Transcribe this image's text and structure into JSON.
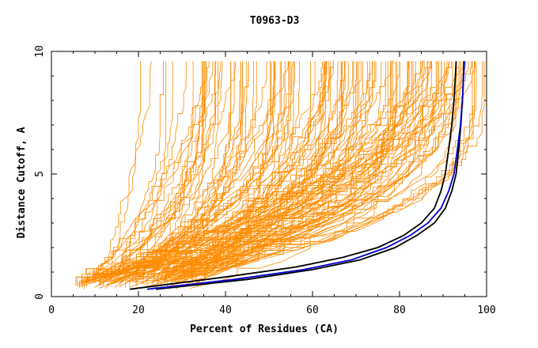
{
  "chart_data": {
    "type": "line",
    "title": "T0963-D3",
    "xlabel": "Percent of Residues (CA)",
    "ylabel": "Distance Cutoff, A",
    "xlim": [
      0,
      100
    ],
    "ylim": [
      0,
      10
    ],
    "x_ticks": [
      "0",
      "20",
      "40",
      "60",
      "80",
      "100"
    ],
    "y_ticks": [
      "0",
      "5",
      "10"
    ],
    "grid": false,
    "legend": "none",
    "colors": {
      "background_curves": "#ff8c00",
      "highlight_black": "#000000",
      "highlight_blue": "#0000cc"
    },
    "background_curves": {
      "count": 140,
      "x_at_min_cutoff_range": [
        5,
        33
      ],
      "x_at_max_cutoff_range": [
        17,
        100
      ]
    },
    "series": [
      {
        "color": "#000000",
        "x": [
          18,
          40,
          56,
          67,
          75,
          81,
          85,
          88,
          89.5,
          90.5,
          91.3,
          92,
          92.6,
          93
        ],
        "y": [
          0.3,
          0.8,
          1.2,
          1.6,
          2.0,
          2.5,
          3.0,
          3.6,
          4.3,
          5.0,
          6.0,
          7.0,
          8.2,
          9.6
        ]
      },
      {
        "color": "#000000",
        "x": [
          24,
          45,
          60,
          71,
          79,
          84,
          88,
          90.5,
          92,
          93,
          93.6,
          94.1,
          94.5,
          94.8
        ],
        "y": [
          0.3,
          0.7,
          1.1,
          1.5,
          2.0,
          2.5,
          3.0,
          3.6,
          4.3,
          5.0,
          6.0,
          7.0,
          8.2,
          9.6
        ]
      },
      {
        "color": "#0000cc",
        "x": [
          22,
          42,
          58,
          69,
          77,
          82.5,
          86.5,
          89.5,
          91.3,
          92.5,
          93.3,
          94,
          94.5,
          94.9
        ],
        "y": [
          0.3,
          0.7,
          1.1,
          1.5,
          2.0,
          2.5,
          3.0,
          3.6,
          4.3,
          5.0,
          6.0,
          7.0,
          8.2,
          9.6
        ]
      }
    ]
  }
}
